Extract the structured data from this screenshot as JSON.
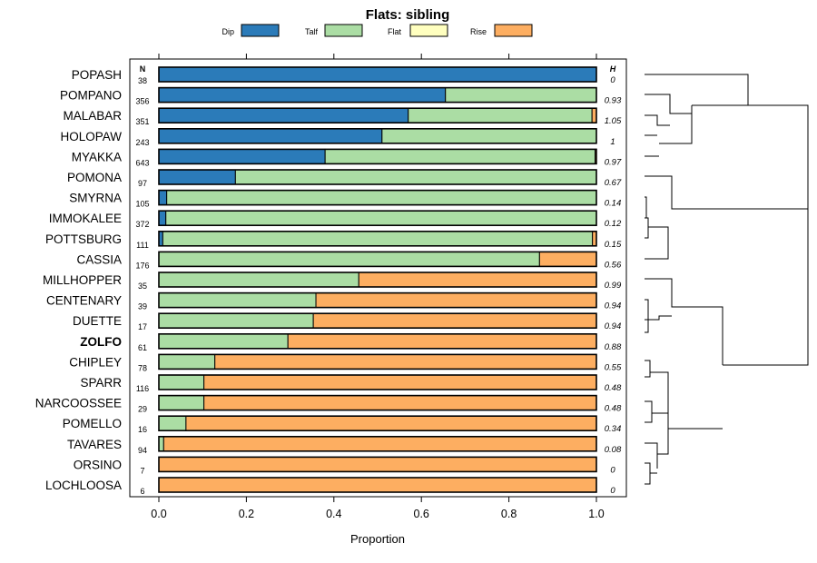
{
  "chart_data": {
    "type": "bar",
    "stacked": true,
    "orientation": "horizontal",
    "title": "Flats: sibling",
    "xlabel": "Proportion",
    "ylabel": "",
    "xlim": [
      0,
      1
    ],
    "xticks": [
      "0.0",
      "0.2",
      "0.4",
      "0.6",
      "0.8",
      "1.0"
    ],
    "n_header": "N",
    "h_header": "H",
    "highlighted": "ZOLFO",
    "legend": [
      {
        "name": "Dip",
        "color": "#2b7bb9"
      },
      {
        "name": "Talf",
        "color": "#abdda4"
      },
      {
        "name": "Flat",
        "color": "#ffffbf"
      },
      {
        "name": "Rise",
        "color": "#fdae61"
      }
    ],
    "categories": [
      "POPASH",
      "POMPANO",
      "MALABAR",
      "HOLOPAW",
      "MYAKKA",
      "POMONA",
      "SMYRNA",
      "IMMOKALEE",
      "POTTSBURG",
      "CASSIA",
      "MILLHOPPER",
      "CENTENARY",
      "DUETTE",
      "ZOLFO",
      "CHIPLEY",
      "SPARR",
      "NARCOOSSEE",
      "POMELLO",
      "TAVARES",
      "ORSINO",
      "LOCHLOOSA"
    ],
    "n": [
      "38",
      "356",
      "351",
      "243",
      "643",
      "97",
      "105",
      "372",
      "111",
      "176",
      "35",
      "39",
      "17",
      "61",
      "78",
      "116",
      "29",
      "16",
      "94",
      "7",
      "6"
    ],
    "h": [
      "0",
      "0.93",
      "1.05",
      "1",
      "0.97",
      "0.67",
      "0.14",
      "0.12",
      "0.15",
      "0.56",
      "0.99",
      "0.94",
      "0.94",
      "0.88",
      "0.55",
      "0.48",
      "0.48",
      "0.34",
      "0.08",
      "0",
      "0"
    ],
    "series": [
      {
        "name": "Dip",
        "values": [
          1.0,
          0.655,
          0.57,
          0.51,
          0.38,
          0.175,
          0.018,
          0.016,
          0.009,
          0,
          0,
          0,
          0,
          0,
          0,
          0,
          0,
          0,
          0,
          0,
          0
        ]
      },
      {
        "name": "Talf",
        "values": [
          0,
          0.345,
          0.42,
          0.49,
          0.617,
          0.825,
          0.982,
          0.984,
          0.982,
          0.87,
          0.457,
          0.359,
          0.353,
          0.295,
          0.128,
          0.103,
          0.103,
          0.062,
          0.011,
          0,
          0
        ]
      },
      {
        "name": "Flat",
        "values": [
          0,
          0,
          0,
          0,
          0,
          0,
          0,
          0,
          0,
          0,
          0,
          0,
          0,
          0,
          0,
          0,
          0,
          0,
          0,
          0,
          0
        ]
      },
      {
        "name": "Rise",
        "values": [
          0,
          0,
          0.01,
          0,
          0.003,
          0,
          0,
          0,
          0.009,
          0.13,
          0.543,
          0.641,
          0.647,
          0.705,
          0.872,
          0.897,
          0.897,
          0.938,
          0.989,
          1.0,
          1.0
        ]
      }
    ]
  }
}
